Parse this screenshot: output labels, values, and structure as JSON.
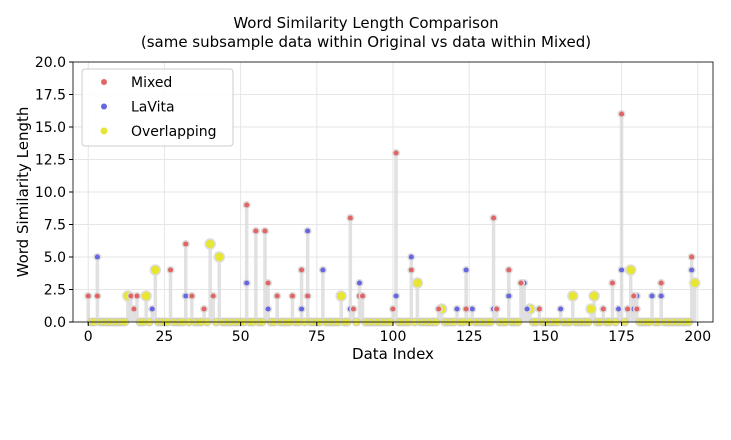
{
  "chart_data": {
    "type": "scatter",
    "title": "Word Similarity Length Comparison",
    "subtitle": "(same subsample data within Original vs data within Mixed)",
    "xlabel": "Data Index",
    "ylabel": "Word Similarity Length",
    "xlim": [
      -5,
      205
    ],
    "ylim": [
      0,
      20
    ],
    "xticks": [
      "0",
      "25",
      "50",
      "75",
      "100",
      "125",
      "150",
      "175",
      "200"
    ],
    "yticks": [
      "0.0",
      "2.5",
      "5.0",
      "7.5",
      "10.0",
      "12.5",
      "15.0",
      "17.5",
      "20.0"
    ],
    "grid": true,
    "legend_position": "upper-left",
    "x_range": [
      0,
      199
    ],
    "series": [
      {
        "name": "Mixed",
        "color": "#e06666",
        "points": [
          [
            0,
            2
          ],
          [
            3,
            2
          ],
          [
            14,
            2
          ],
          [
            15,
            1
          ],
          [
            16,
            2
          ],
          [
            27,
            4
          ],
          [
            32,
            6
          ],
          [
            34,
            2
          ],
          [
            38,
            1
          ],
          [
            41,
            2
          ],
          [
            52,
            9
          ],
          [
            55,
            7
          ],
          [
            58,
            7
          ],
          [
            59,
            3
          ],
          [
            62,
            2
          ],
          [
            67,
            2
          ],
          [
            70,
            4
          ],
          [
            72,
            2
          ],
          [
            86,
            8
          ],
          [
            87,
            1
          ],
          [
            89,
            2
          ],
          [
            90,
            2
          ],
          [
            100,
            1
          ],
          [
            101,
            13
          ],
          [
            106,
            4
          ],
          [
            115,
            1
          ],
          [
            124,
            1
          ],
          [
            133,
            8
          ],
          [
            134,
            1
          ],
          [
            138,
            4
          ],
          [
            142,
            3
          ],
          [
            148,
            1
          ],
          [
            169,
            1
          ],
          [
            172,
            3
          ],
          [
            175,
            16
          ],
          [
            177,
            1
          ],
          [
            179,
            2
          ],
          [
            180,
            1
          ],
          [
            188,
            3
          ],
          [
            198,
            5
          ]
        ]
      },
      {
        "name": "LaVita",
        "color": "#6666e0",
        "points": [
          [
            3,
            5
          ],
          [
            21,
            1
          ],
          [
            32,
            2
          ],
          [
            52,
            3
          ],
          [
            59,
            1
          ],
          [
            70,
            1
          ],
          [
            72,
            7
          ],
          [
            77,
            4
          ],
          [
            86,
            1
          ],
          [
            89,
            3
          ],
          [
            101,
            2
          ],
          [
            106,
            5
          ],
          [
            121,
            1
          ],
          [
            124,
            4
          ],
          [
            126,
            1
          ],
          [
            133,
            1
          ],
          [
            138,
            2
          ],
          [
            143,
            3
          ],
          [
            144,
            1
          ],
          [
            155,
            1
          ],
          [
            174,
            1
          ],
          [
            175,
            4
          ],
          [
            179,
            1
          ],
          [
            180,
            2
          ],
          [
            185,
            2
          ],
          [
            188,
            2
          ],
          [
            198,
            4
          ]
        ]
      },
      {
        "name": "Overlapping",
        "color": "#e6e633",
        "points": [
          [
            13,
            2
          ],
          [
            19,
            2
          ],
          [
            22,
            4
          ],
          [
            40,
            6
          ],
          [
            43,
            5
          ],
          [
            83,
            2
          ],
          [
            108,
            3
          ],
          [
            116,
            1
          ],
          [
            145,
            1
          ],
          [
            159,
            2
          ],
          [
            165,
            1
          ],
          [
            166,
            2
          ],
          [
            178,
            4
          ],
          [
            199,
            3
          ]
        ]
      }
    ]
  }
}
